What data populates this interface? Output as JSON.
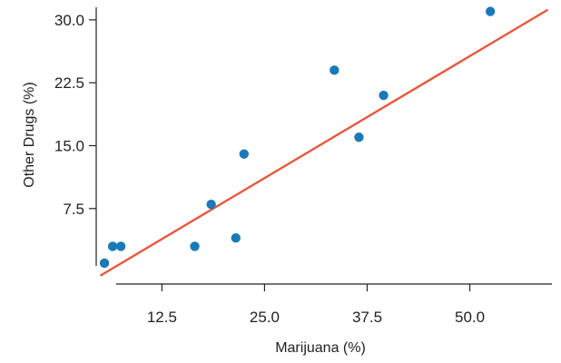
{
  "chart_data": {
    "type": "scatter",
    "title": "",
    "xlabel": "Marijuana (%)",
    "ylabel": "Other Drugs (%)",
    "xlim": [
      4.5,
      60
    ],
    "ylim": [
      -1.5,
      31.5
    ],
    "x_ticks": [
      12.5,
      25.0,
      37.5,
      50.0
    ],
    "x_tick_labels": [
      "12.5",
      "25.0",
      "37.5",
      "50.0"
    ],
    "y_ticks": [
      7.5,
      15.0,
      22.5,
      30.0
    ],
    "y_tick_labels": [
      "7.5",
      "15.0",
      "22.5",
      "30.0"
    ],
    "grid": false,
    "series": [
      {
        "x": [
          5.5,
          6.5,
          7.5,
          16.5,
          18.5,
          21.5,
          22.5,
          33.5,
          36.5,
          39.5,
          52.5
        ],
        "y": [
          1.0,
          3.0,
          3.0,
          3.0,
          8.0,
          4.0,
          14.0,
          24.0,
          16.0,
          21.0,
          31.0
        ]
      }
    ],
    "regression_line": {
      "x": [
        5.0,
        59.5
      ],
      "y": [
        -0.5,
        31.2
      ]
    },
    "colors": {
      "points": "#1a7ab8",
      "line": "#e8573c",
      "axis": "#222222"
    }
  }
}
